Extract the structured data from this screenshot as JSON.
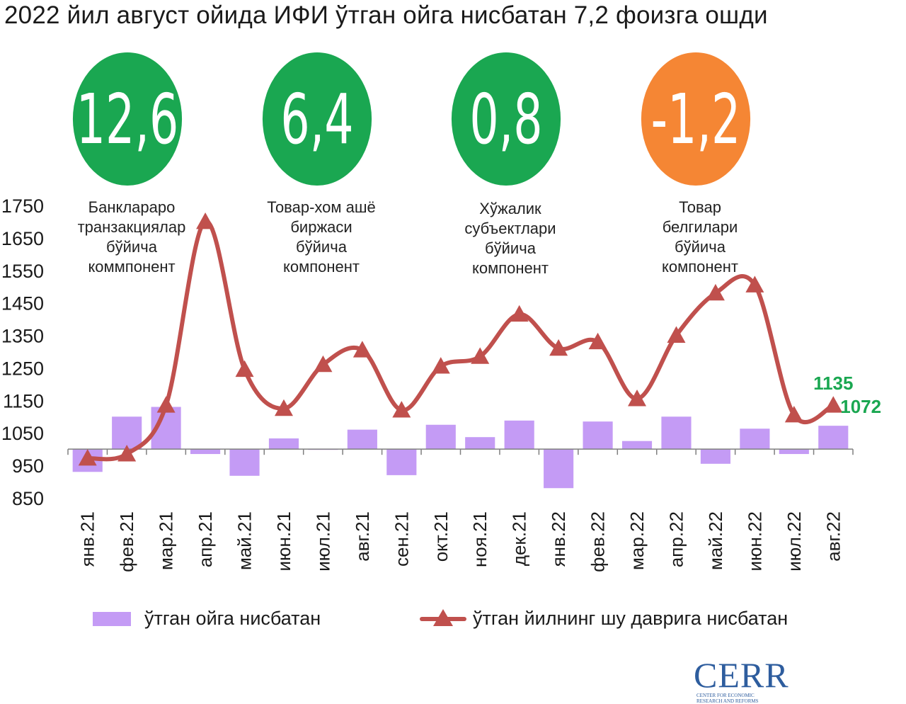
{
  "title": "2022 йил август ойида ИФИ ўтган ойга нисбатан 7,2 фоизга ошди",
  "components": [
    {
      "value": "12,6",
      "color": "#1aa751",
      "label_lines": [
        "Банклараро",
        "транзакциялар",
        "бўйича",
        "коммпонент"
      ]
    },
    {
      "value": "6,4",
      "color": "#1aa751",
      "label_lines": [
        "Товар-хом ашё",
        "биржаси",
        "бўйича",
        "компонент"
      ]
    },
    {
      "value": "0,8",
      "color": "#1aa751",
      "label_lines": [
        "Хўжалик",
        "субъектлари",
        "бўйича",
        "компонент"
      ]
    },
    {
      "value": "-1,2",
      "color": "#f58634",
      "label_lines": [
        "Товар",
        "белгилари",
        "бўйича",
        "компонент"
      ]
    }
  ],
  "legend": {
    "bar_label": "ўтган ойга нисбатан",
    "line_label": "ўтган йилнинг шу даврига нисбатан"
  },
  "logo": {
    "word": "CERR",
    "sub_lines": [
      "CENTER FOR ECONOMIC",
      "RESEARCH AND REFORMS"
    ]
  },
  "chart_data": {
    "type": "bar+line",
    "categories": [
      "янв.21",
      "фев.21",
      "мар.21",
      "апр.21",
      "май.21",
      "июн.21",
      "июл.21",
      "авг.21",
      "сен.21",
      "окт.21",
      "ноя.21",
      "дек.21",
      "янв.22",
      "фев.22",
      "мар.22",
      "апр.22",
      "май.22",
      "июн.22",
      "июл.22",
      "авг.22"
    ],
    "yticks": [
      850,
      950,
      1050,
      1150,
      1250,
      1350,
      1450,
      1550,
      1650,
      1750
    ],
    "ylim": [
      850,
      1750
    ],
    "baseline": 1000,
    "series": [
      {
        "name": "ўтган ойга нисбатан",
        "kind": "bar",
        "color": "#c49bf5",
        "values": [
          930,
          1100,
          1130,
          985,
          918,
          1033,
          1000,
          1060,
          920,
          1075,
          1037,
          1088,
          880,
          1085,
          1025,
          1100,
          955,
          1063,
          985,
          1072
        ]
      },
      {
        "name": "ўтган йилнинг шу даврига нисбатан",
        "kind": "line",
        "color": "#c0504d",
        "values": [
          972,
          985,
          1135,
          1700,
          1245,
          1125,
          1260,
          1305,
          1120,
          1255,
          1285,
          1415,
          1310,
          1330,
          1155,
          1350,
          1480,
          1505,
          1105,
          1135
        ]
      }
    ],
    "data_labels": [
      {
        "series": "line",
        "index": 19,
        "text": "1135",
        "color": "#1aa751"
      },
      {
        "series": "bar",
        "index": 19,
        "text": "1072",
        "color": "#1aa751"
      }
    ]
  }
}
